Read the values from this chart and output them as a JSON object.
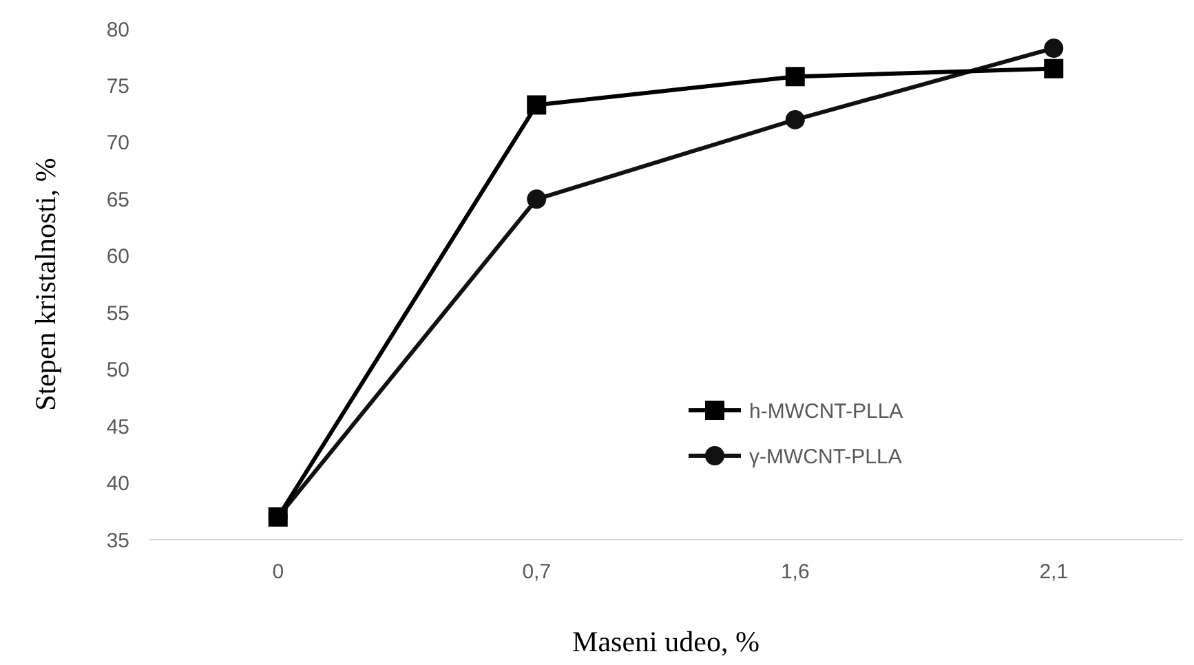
{
  "chart_data": {
    "type": "line",
    "xlabel": "Maseni udeo, %",
    "ylabel": "Stepen kristalnosti,  %",
    "categories": [
      "0",
      "0,7",
      "1,6",
      "2,1"
    ],
    "series": [
      {
        "name": "h-MWCNT-PLLA",
        "color": "#000000",
        "marker": "square",
        "values": [
          37,
          73.3,
          75.8,
          76.5
        ]
      },
      {
        "name": "γ-MWCNT-PLLA",
        "color": "#111111",
        "marker": "circle",
        "values": [
          37,
          65,
          72,
          78.3
        ]
      }
    ],
    "ylim": [
      35,
      80
    ],
    "yticks": [
      35,
      40,
      45,
      50,
      55,
      60,
      65,
      70,
      75,
      80
    ],
    "grid": false,
    "legend": "right",
    "line_style": "solid"
  }
}
